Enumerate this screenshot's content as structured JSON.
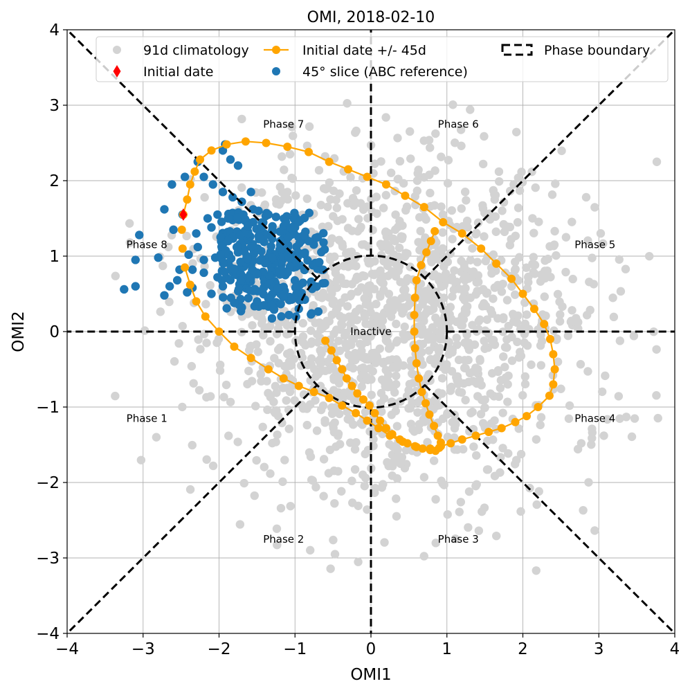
{
  "chart_data": {
    "type": "scatter",
    "title": "OMI, 2018-02-10",
    "xlabel": "OMI1",
    "ylabel": "OMI2",
    "xlim": [
      -4,
      4
    ],
    "ylim": [
      -4,
      4
    ],
    "grid": true,
    "xticks": [
      -4,
      -3,
      -2,
      -1,
      0,
      1,
      2,
      3,
      4
    ],
    "yticks": [
      -4,
      -3,
      -2,
      -1,
      0,
      1,
      2,
      3,
      4
    ],
    "legend": {
      "placement": "top",
      "entries": [
        {
          "label": "91d climatology",
          "marker": "circle",
          "color": "#d3d3d3"
        },
        {
          "label": "Initial date +/- 45d",
          "marker": "line-circle",
          "color": "#ffa500"
        },
        {
          "label": "Phase boundary",
          "marker": "dashed-box",
          "color": "#000000"
        },
        {
          "label": "Initial date",
          "marker": "diamond",
          "color": "#ff0000"
        },
        {
          "label": "45° slice (ABC reference)",
          "marker": "circle",
          "color": "#1f77b4"
        }
      ]
    },
    "phase_labels": [
      {
        "label": "Phase 1",
        "x": -2.95,
        "y": -1.15
      },
      {
        "label": "Phase 2",
        "x": -1.15,
        "y": -2.75
      },
      {
        "label": "Phase 3",
        "x": 1.15,
        "y": -2.75
      },
      {
        "label": "Phase 4",
        "x": 2.95,
        "y": -1.15
      },
      {
        "label": "Phase 5",
        "x": 2.95,
        "y": 1.15
      },
      {
        "label": "Phase 6",
        "x": 1.15,
        "y": 2.75
      },
      {
        "label": "Phase 7",
        "x": -1.15,
        "y": 2.75
      },
      {
        "label": "Phase 8",
        "x": -2.95,
        "y": 1.15
      },
      {
        "label": "Inactive",
        "x": 0,
        "y": 0
      }
    ],
    "inactive_radius": 1,
    "climatology": {
      "name": "91d climatology",
      "color": "#d3d3d3",
      "count": 1500,
      "center": [
        0.25,
        0.1
      ],
      "spread": [
        1.25,
        1.15
      ]
    },
    "trajectory": {
      "name": "Initial date +/- 45d",
      "color": "#ffa500",
      "points": [
        [
          -0.6,
          -0.12
        ],
        [
          -0.52,
          -0.25
        ],
        [
          -0.45,
          -0.38
        ],
        [
          -0.38,
          -0.5
        ],
        [
          -0.32,
          -0.62
        ],
        [
          -0.25,
          -0.72
        ],
        [
          -0.18,
          -0.82
        ],
        [
          -0.1,
          -0.9
        ],
        [
          -0.02,
          -0.98
        ],
        [
          0.05,
          -1.08
        ],
        [
          0.12,
          -1.18
        ],
        [
          0.2,
          -1.28
        ],
        [
          0.28,
          -1.36
        ],
        [
          0.38,
          -1.43
        ],
        [
          0.48,
          -1.48
        ],
        [
          0.58,
          -1.52
        ],
        [
          0.68,
          -1.55
        ],
        [
          0.78,
          -1.57
        ],
        [
          0.85,
          -1.58
        ],
        [
          0.9,
          -1.54
        ],
        [
          0.92,
          -1.47
        ],
        [
          0.88,
          -1.38
        ],
        [
          0.83,
          -1.25
        ],
        [
          0.77,
          -1.1
        ],
        [
          0.72,
          -0.95
        ],
        [
          0.67,
          -0.8
        ],
        [
          0.63,
          -0.62
        ],
        [
          0.6,
          -0.42
        ],
        [
          0.58,
          -0.22
        ],
        [
          0.57,
          0
        ],
        [
          0.57,
          0.22
        ],
        [
          0.58,
          0.45
        ],
        [
          0.6,
          0.68
        ],
        [
          0.66,
          0.88
        ],
        [
          0.73,
          1.05
        ],
        [
          0.79,
          1.2
        ],
        [
          0.84,
          1.33
        ],
        [
          -2.47,
          1.55
        ],
        [
          -2.42,
          1.75
        ],
        [
          -2.38,
          1.95
        ],
        [
          -2.32,
          2.12
        ],
        [
          -2.25,
          2.28
        ],
        [
          -2.1,
          2.4
        ],
        [
          -1.9,
          2.48
        ],
        [
          -1.65,
          2.52
        ],
        [
          -1.38,
          2.5
        ],
        [
          -1.1,
          2.45
        ],
        [
          -0.82,
          2.38
        ],
        [
          -0.55,
          2.25
        ],
        [
          -0.3,
          2.15
        ],
        [
          -0.05,
          2.05
        ],
        [
          0.2,
          1.95
        ],
        [
          0.45,
          1.8
        ],
        [
          0.7,
          1.65
        ],
        [
          0.95,
          1.45
        ],
        [
          1.2,
          1.3
        ],
        [
          1.45,
          1.1
        ],
        [
          1.65,
          0.9
        ],
        [
          1.85,
          0.7
        ],
        [
          2.0,
          0.5
        ],
        [
          2.15,
          0.3
        ],
        [
          2.28,
          0.1
        ],
        [
          2.36,
          -0.1
        ],
        [
          2.4,
          -0.3
        ],
        [
          2.42,
          -0.5
        ],
        [
          2.4,
          -0.7
        ],
        [
          2.35,
          -0.85
        ],
        [
          2.2,
          -1.0
        ],
        [
          2.05,
          -1.12
        ],
        [
          1.9,
          -1.2
        ],
        [
          1.72,
          -1.28
        ],
        [
          1.55,
          -1.33
        ],
        [
          1.38,
          -1.38
        ],
        [
          1.2,
          -1.43
        ],
        [
          1.05,
          -1.48
        ],
        [
          0.92,
          -1.52
        ],
        [
          0.78,
          -1.55
        ],
        [
          0.6,
          -1.53
        ],
        [
          0.42,
          -1.46
        ],
        [
          0.25,
          -1.38
        ],
        [
          0.1,
          -1.28
        ],
        [
          -0.05,
          -1.18
        ],
        [
          -0.2,
          -1.08
        ],
        [
          -0.38,
          -0.98
        ],
        [
          -0.55,
          -0.88
        ],
        [
          -0.75,
          -0.8
        ],
        [
          -0.95,
          -0.72
        ],
        [
          -1.15,
          -0.62
        ],
        [
          -1.35,
          -0.5
        ],
        [
          -1.58,
          -0.35
        ],
        [
          -1.8,
          -0.2
        ],
        [
          -2.0,
          0.0
        ],
        [
          -2.18,
          0.2
        ],
        [
          -2.3,
          0.4
        ],
        [
          -2.38,
          0.62
        ],
        [
          -2.45,
          0.85
        ],
        [
          -2.48,
          1.1
        ],
        [
          -2.49,
          1.35
        ],
        [
          -2.47,
          1.55
        ]
      ],
      "segments": [
        [
          0,
          36
        ],
        [
          37,
          95
        ]
      ]
    },
    "initial_date": {
      "name": "Initial date",
      "color": "#ff0000",
      "x": -2.47,
      "y": 1.55
    },
    "slice": {
      "name": "45° slice (ABC reference)",
      "color": "#1f77b4",
      "count": 290,
      "center": [
        -1.4,
        0.98
      ],
      "spread": [
        0.45,
        0.38
      ],
      "extra_points": [
        [
          -3.25,
          0.56
        ],
        [
          -3.1,
          0.6
        ],
        [
          -3.1,
          0.95
        ],
        [
          -3.05,
          1.28
        ],
        [
          -2.8,
          0.98
        ],
        [
          -2.72,
          0.48
        ],
        [
          -2.65,
          0.6
        ],
        [
          -2.55,
          0.68
        ],
        [
          -2.72,
          1.62
        ],
        [
          -2.62,
          1.95
        ],
        [
          -2.45,
          2.05
        ],
        [
          -2.6,
          1.35
        ],
        [
          -2.48,
          1.55
        ],
        [
          -2.3,
          1.3
        ],
        [
          -2.28,
          1.12
        ],
        [
          -2.2,
          0.95
        ],
        [
          -2.2,
          0.78
        ],
        [
          -2.35,
          0.58
        ],
        [
          -2.42,
          0.52
        ],
        [
          -2.28,
          2.25
        ],
        [
          -2.2,
          2.05
        ],
        [
          -2.08,
          1.95
        ],
        [
          -1.95,
          2.4
        ],
        [
          -1.92,
          2.48
        ],
        [
          -1.85,
          2.28
        ],
        [
          -1.75,
          2.2
        ],
        [
          -1.95,
          1.85
        ],
        [
          -1.82,
          1.78
        ],
        [
          -1.7,
          1.72
        ],
        [
          -1.58,
          1.85
        ],
        [
          -1.68,
          1.55
        ],
        [
          -1.55,
          1.62
        ],
        [
          -2.15,
          1.5
        ],
        [
          -2.1,
          1.38
        ],
        [
          -2.02,
          1.55
        ],
        [
          -1.98,
          1.25
        ],
        [
          -1.88,
          1.5
        ],
        [
          -1.88,
          1.2
        ],
        [
          -1.95,
          0.6
        ],
        [
          -2.1,
          0.5
        ],
        [
          -1.8,
          0.38
        ],
        [
          -1.7,
          0.32
        ],
        [
          -1.28,
          0.3
        ],
        [
          -1.18,
          0.2
        ],
        [
          -1.08,
          0.22
        ],
        [
          -0.95,
          0.3
        ],
        [
          -0.98,
          0.5
        ],
        [
          -0.92,
          0.42
        ],
        [
          -0.78,
          0.62
        ],
        [
          -0.65,
          0.82
        ],
        [
          -0.68,
          0.92
        ],
        [
          -0.82,
          1.2
        ],
        [
          -0.88,
          1.28
        ],
        [
          -1.0,
          1.38
        ],
        [
          -1.12,
          1.45
        ],
        [
          -1.25,
          1.52
        ],
        [
          -1.35,
          1.55
        ],
        [
          -1.48,
          1.6
        ],
        [
          -1.55,
          1.45
        ],
        [
          -1.62,
          1.4
        ],
        [
          -1.35,
          0.45
        ],
        [
          -1.5,
          0.4
        ],
        [
          -1.6,
          0.55
        ],
        [
          -2.02,
          0.72
        ],
        [
          -2.05,
          0.98
        ],
        [
          -1.98,
          1.02
        ],
        [
          -2.35,
          0.82
        ],
        [
          -2.52,
          0.82
        ],
        [
          -2.4,
          1.02
        ]
      ]
    }
  }
}
